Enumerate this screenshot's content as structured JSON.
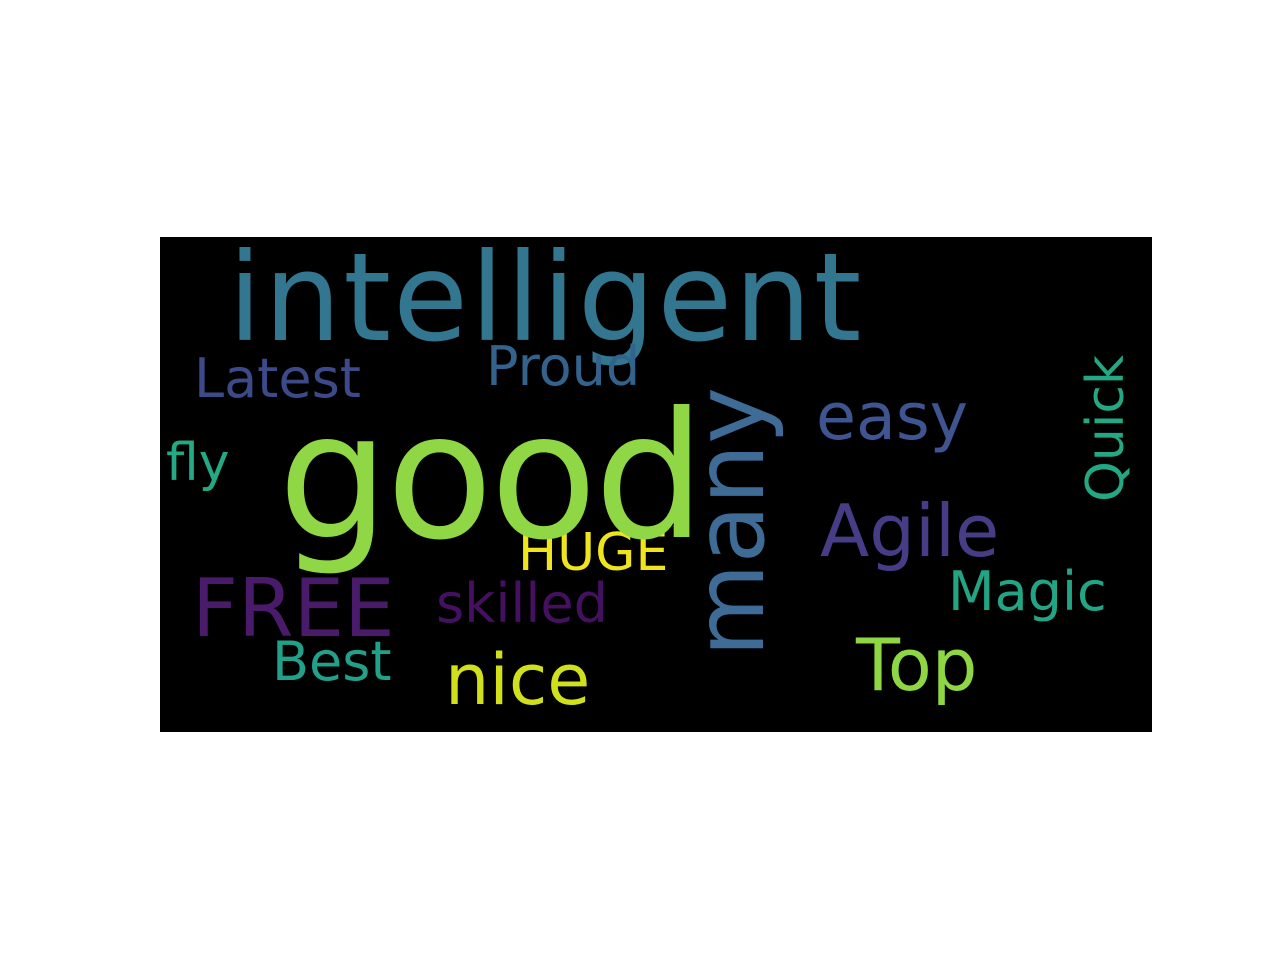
{
  "word_cloud": {
    "background_color": "#000000",
    "words": {
      "intelligent": {
        "text": "intelligent",
        "color": "#33768f",
        "orientation": "horizontal"
      },
      "good": {
        "text": "good",
        "color": "#8fd744",
        "orientation": "horizontal"
      },
      "many": {
        "text": "many",
        "color": "#3e6c96",
        "orientation": "vertical"
      },
      "latest": {
        "text": "Latest",
        "color": "#3d4a89",
        "orientation": "horizontal"
      },
      "proud": {
        "text": "Proud",
        "color": "#33638d",
        "orientation": "horizontal"
      },
      "easy": {
        "text": "easy",
        "color": "#3f5591",
        "orientation": "horizontal"
      },
      "quick": {
        "text": "Quick",
        "color": "#24a884",
        "orientation": "vertical"
      },
      "fly": {
        "text": "fly",
        "color": "#23a983",
        "orientation": "horizontal"
      },
      "agile": {
        "text": "Agile",
        "color": "#463d86",
        "orientation": "horizontal"
      },
      "huge": {
        "text": "HUGE",
        "color": "#efe51c",
        "orientation": "horizontal"
      },
      "magic": {
        "text": "Magic",
        "color": "#22a585",
        "orientation": "horizontal"
      },
      "free": {
        "text": "FREE",
        "color": "#4a1b6b",
        "orientation": "horizontal"
      },
      "skilled": {
        "text": "skilled",
        "color": "#44105f",
        "orientation": "horizontal"
      },
      "best": {
        "text": "Best",
        "color": "#21a08a",
        "orientation": "horizontal"
      },
      "nice": {
        "text": "nice",
        "color": "#d0e11c",
        "orientation": "horizontal"
      },
      "top": {
        "text": "Top",
        "color": "#8ed643",
        "orientation": "horizontal"
      }
    }
  }
}
